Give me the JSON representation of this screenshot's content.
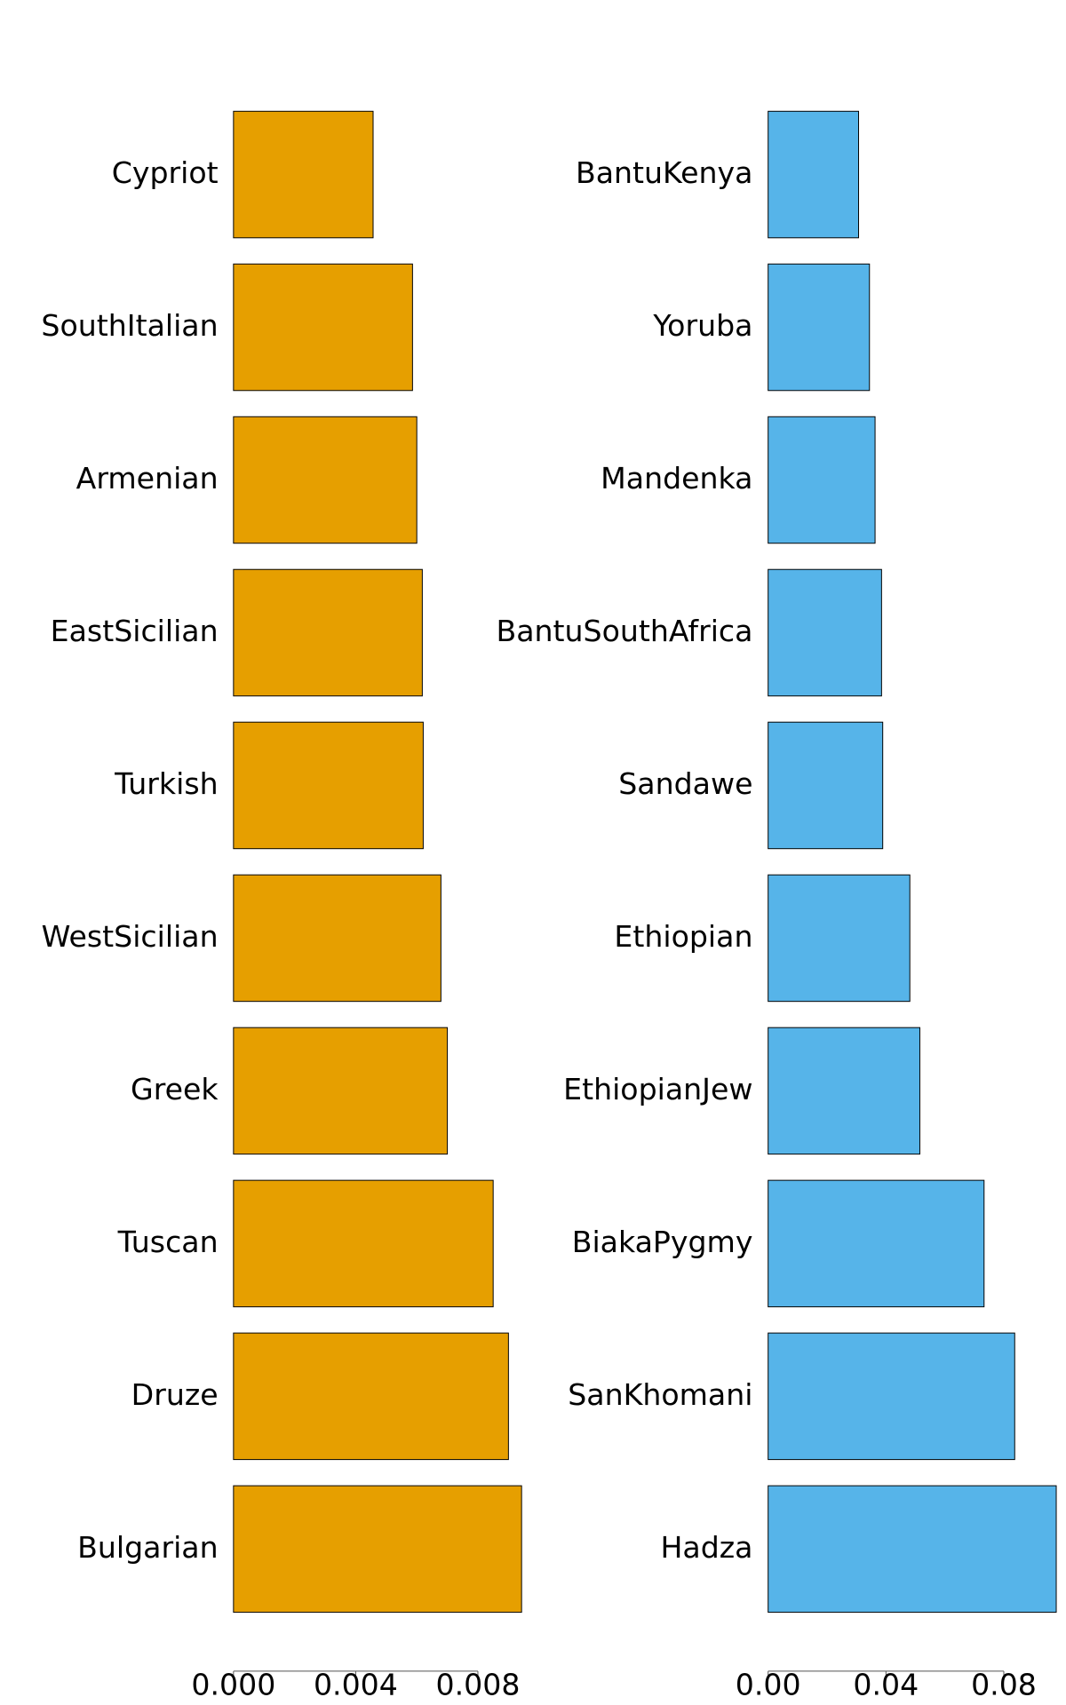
{
  "chart_data": [
    {
      "type": "bar",
      "orientation": "horizontal",
      "categories": [
        "Cypriot",
        "SouthItalian",
        "Armenian",
        "EastSicilian",
        "Turkish",
        "WestSicilian",
        "Greek",
        "Tuscan",
        "Druze",
        "Bulgarian"
      ],
      "values": [
        0.00457,
        0.00586,
        0.006,
        0.00618,
        0.00621,
        0.00679,
        0.007,
        0.0085,
        0.009,
        0.00943
      ],
      "color": "#E69F00",
      "xlim": [
        0,
        0.0095
      ],
      "xticks": [
        {
          "value": 0,
          "label": "0.000"
        },
        {
          "value": 0.004,
          "label": "0.004"
        },
        {
          "value": 0.008,
          "label": "0.008"
        }
      ]
    },
    {
      "type": "bar",
      "orientation": "horizontal",
      "categories": [
        "BantuKenya",
        "Yoruba",
        "Mandenka",
        "BantuSouthAfrica",
        "Sandawe",
        "Ethiopian",
        "EthiopianJew",
        "BiakaPygmy",
        "SanKhomani",
        "Hadza"
      ],
      "values": [
        0.0307,
        0.0344,
        0.0363,
        0.0385,
        0.0389,
        0.0481,
        0.0515,
        0.0733,
        0.0837,
        0.0978
      ],
      "color": "#56B4E9",
      "xlim": [
        0,
        0.1
      ],
      "xticks": [
        {
          "value": 0,
          "label": "0.00"
        },
        {
          "value": 0.04,
          "label": "0.04"
        },
        {
          "value": 0.08,
          "label": "0.08"
        }
      ]
    }
  ]
}
